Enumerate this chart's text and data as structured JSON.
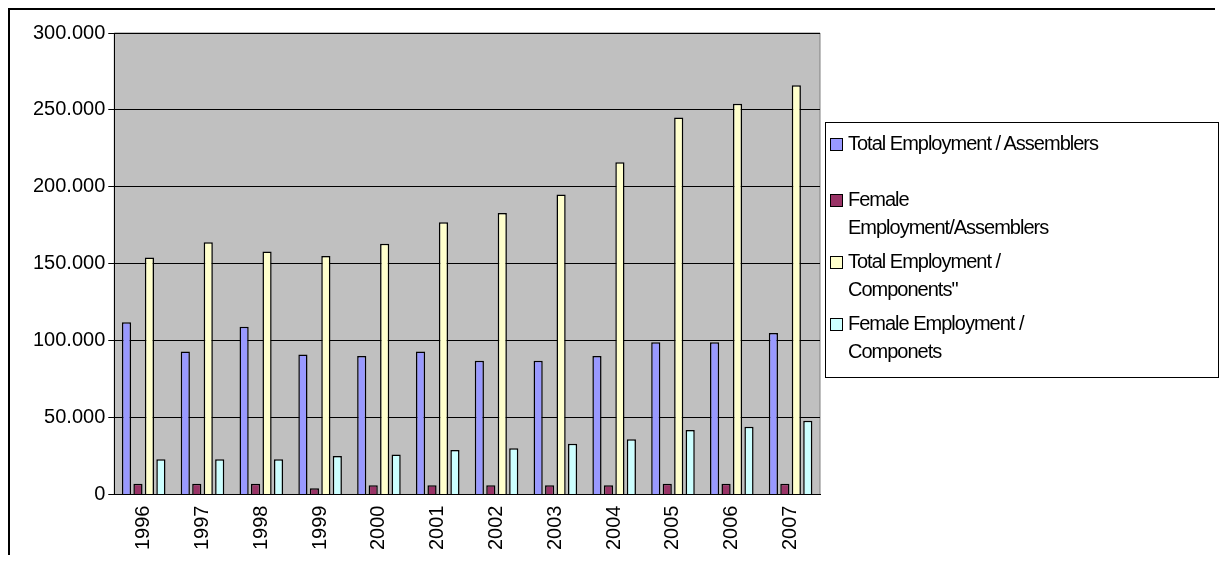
{
  "chart_data": {
    "type": "bar",
    "categories": [
      "1996",
      "1997",
      "1998",
      "1999",
      "2000",
      "2001",
      "2002",
      "2003",
      "2004",
      "2005",
      "2006",
      "2007"
    ],
    "series": [
      {
        "name": "Total Employment / Assemblers",
        "color": "#9999ff",
        "values": [
          112000,
          93000,
          109000,
          91000,
          90000,
          93000,
          87000,
          87000,
          90000,
          99000,
          99000,
          105000
        ]
      },
      {
        "name": "Female Employment/Assemblers",
        "color": "#993366",
        "values": [
          7000,
          7000,
          7000,
          4000,
          6000,
          6000,
          6000,
          6000,
          6000,
          7000,
          7000,
          7000
        ]
      },
      {
        "name": "Total Employment / Components\"",
        "color": "#ffffcc",
        "values": [
          154000,
          164000,
          158000,
          155000,
          163000,
          177000,
          183000,
          195000,
          216000,
          245000,
          254000,
          266000
        ]
      },
      {
        "name": "Female Employment / Componets",
        "color": "#ccffff",
        "values": [
          23000,
          23000,
          23000,
          25000,
          26000,
          29000,
          30000,
          33000,
          36000,
          42000,
          44000,
          48000
        ]
      }
    ],
    "ylim": [
      0,
      300000
    ],
    "yticks": [
      0,
      {
        "value": 50000,
        "label": "50.000"
      },
      {
        "value": 100000,
        "label": "100.000"
      },
      {
        "value": 150000,
        "label": "150.000"
      },
      {
        "value": 200000,
        "label": "200.000"
      },
      {
        "value": 250000,
        "label": "250.000"
      },
      {
        "value": 300000,
        "label": "300.000"
      }
    ],
    "grid": "y",
    "legend": "right"
  }
}
